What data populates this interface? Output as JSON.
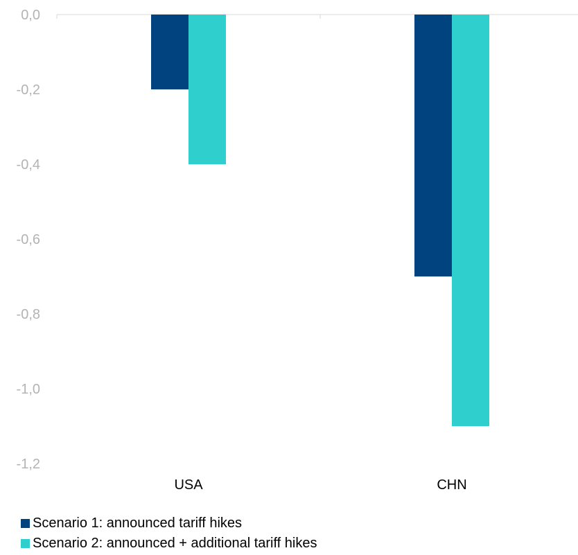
{
  "chart_data": {
    "type": "bar",
    "categories": [
      "USA",
      "CHN"
    ],
    "series": [
      {
        "name": "Scenario 1: announced tariff hikes",
        "color": "#00437f",
        "values": [
          -0.2,
          -0.7
        ]
      },
      {
        "name": "Scenario 2: announced + additional tariff hikes",
        "color": "#2ecfcc",
        "values": [
          -0.4,
          -1.1
        ]
      }
    ],
    "yticks": [
      "0,0",
      "-0,2",
      "-0,4",
      "-0,6",
      "-0,8",
      "-1,0",
      "-1,2"
    ],
    "ylim": [
      -1.2,
      0
    ],
    "xlabel": "",
    "ylabel": "",
    "title": "",
    "grid": false,
    "legend_position": "bottom-left"
  }
}
